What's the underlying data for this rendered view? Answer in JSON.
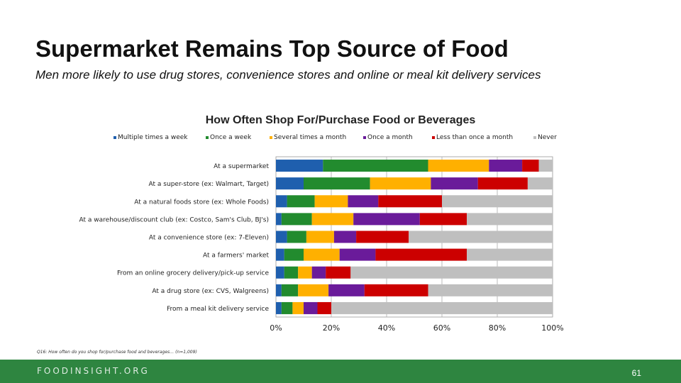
{
  "slide": {
    "title": "Supermarket Remains Top Source of Food",
    "subtitle": "Men more likely to use drug stores, convenience stores and online or meal kit delivery services",
    "footnote": "Q16: How often do you shop for/purchase food and beverages… (n=1,009)",
    "footer_logo": "FOODINSIGHT.ORG",
    "page_number": "61",
    "footer_color": "#2e8540"
  },
  "chart_data": {
    "type": "bar",
    "orientation": "horizontal",
    "stacked": true,
    "title": "How Often Shop For/Purchase Food or Beverages",
    "categories": [
      "At a supermarket",
      "At a super-store (ex: Walmart, Target)",
      "At a natural foods store (ex: Whole Foods)",
      "At a warehouse/discount club (ex: Costco, Sam's Club, BJ's)",
      "At a convenience store (ex: 7-Eleven)",
      "At a farmers' market",
      "From an online grocery delivery/pick-up service",
      "At a drug store (ex: CVS, Walgreens)",
      "From a meal kit delivery service"
    ],
    "series": [
      {
        "name": "Multiple times a week",
        "color": "#1f5fae",
        "values": [
          17,
          10,
          4,
          2,
          4,
          3,
          3,
          2,
          2
        ]
      },
      {
        "name": "Once a week",
        "color": "#228b2e",
        "values": [
          38,
          24,
          10,
          11,
          7,
          7,
          5,
          6,
          4
        ]
      },
      {
        "name": "Several times a month",
        "color": "#ffb000",
        "values": [
          22,
          22,
          12,
          15,
          10,
          13,
          5,
          11,
          4
        ]
      },
      {
        "name": "Once a month",
        "color": "#6a1b9a",
        "values": [
          12,
          17,
          11,
          24,
          8,
          13,
          5,
          13,
          5
        ]
      },
      {
        "name": "Less than once a month",
        "color": "#cc0000",
        "values": [
          6,
          18,
          23,
          17,
          19,
          33,
          9,
          23,
          5
        ]
      },
      {
        "name": "Never",
        "color": "#bfbfbf",
        "values": [
          5,
          9,
          40,
          31,
          52,
          31,
          73,
          45,
          80
        ]
      }
    ],
    "xlim": [
      0,
      100
    ],
    "xticks": [
      "0%",
      "20%",
      "40%",
      "60%",
      "80%",
      "100%"
    ],
    "grid": true,
    "legend": "top"
  }
}
